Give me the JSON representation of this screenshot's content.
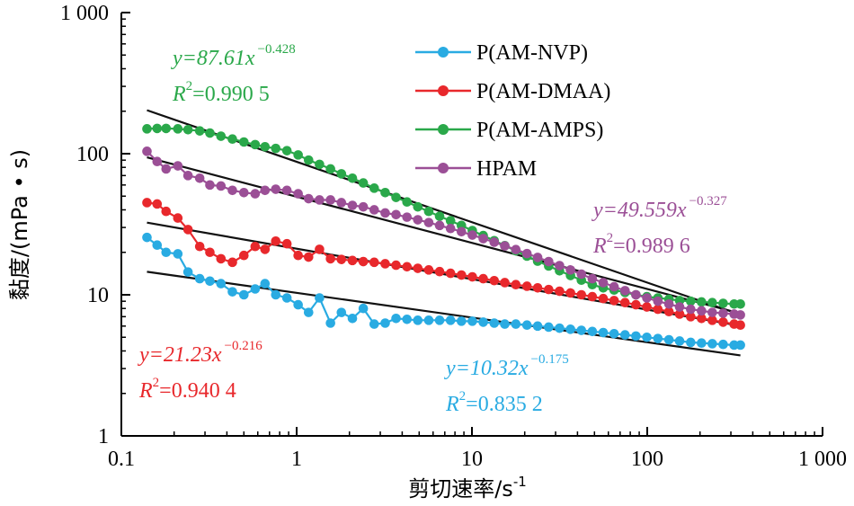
{
  "chart_data": {
    "type": "scatter",
    "xscale": "log",
    "yscale": "log",
    "xlim": [
      0.1,
      1000
    ],
    "ylim": [
      1,
      1000
    ],
    "xlabel": "剪切速率/s",
    "xlabel_sup": "-1",
    "ylabel": "黏度/(mPa • s)",
    "x_ticks": [
      "0.1",
      "1",
      "10",
      "100",
      "1 000"
    ],
    "y_ticks": [
      "1",
      "10",
      "100",
      "1 000"
    ],
    "grid": false,
    "legend_position": "top-center",
    "series": [
      {
        "key": "nvp",
        "name": "P(AM-NVP)",
        "color": "#29abe2",
        "x": [
          0.14,
          0.16,
          0.18,
          0.21,
          0.24,
          0.28,
          0.32,
          0.37,
          0.43,
          0.5,
          0.58,
          0.66,
          0.76,
          0.88,
          1.02,
          1.17,
          1.35,
          1.56,
          1.8,
          2.08,
          2.4,
          2.77,
          3.2,
          3.69,
          4.26,
          4.91,
          5.67,
          6.54,
          7.55,
          8.71,
          10.05,
          11.6,
          13.4,
          15.4,
          17.8,
          20.6,
          23.7,
          27.4,
          31.6,
          36.5,
          42.1,
          48.6,
          56.1,
          64.7,
          74.7,
          86.2,
          99.5,
          115,
          133,
          153,
          177,
          204,
          235,
          271,
          313,
          340
        ],
        "y": [
          25.5,
          22.5,
          20,
          19.5,
          14.5,
          13,
          12.5,
          12,
          10.5,
          10,
          11,
          12,
          10,
          9.5,
          8.5,
          7.5,
          9.5,
          6.3,
          7.5,
          6.8,
          8,
          6.2,
          6.3,
          6.8,
          6.7,
          6.6,
          6.6,
          6.6,
          6.6,
          6.5,
          6.5,
          6.4,
          6.3,
          6.2,
          6.2,
          6.1,
          6,
          5.9,
          5.8,
          5.7,
          5.6,
          5.5,
          5.4,
          5.3,
          5.2,
          5.1,
          5,
          4.9,
          4.8,
          4.7,
          4.6,
          4.55,
          4.5,
          4.45,
          4.4,
          4.4
        ]
      },
      {
        "key": "dmaa",
        "name": "P(AM-DMAA)",
        "color": "#e8282c",
        "x": [
          0.14,
          0.16,
          0.18,
          0.21,
          0.24,
          0.28,
          0.32,
          0.37,
          0.43,
          0.5,
          0.58,
          0.66,
          0.76,
          0.88,
          1.02,
          1.17,
          1.35,
          1.56,
          1.8,
          2.08,
          2.4,
          2.77,
          3.2,
          3.69,
          4.26,
          4.91,
          5.67,
          6.54,
          7.55,
          8.71,
          10.05,
          11.6,
          13.4,
          15.4,
          17.8,
          20.6,
          23.7,
          27.4,
          31.6,
          36.5,
          42.1,
          48.6,
          56.1,
          64.7,
          74.7,
          86.2,
          99.5,
          115,
          133,
          153,
          177,
          204,
          235,
          271,
          313,
          340
        ],
        "y": [
          45,
          44,
          39,
          35,
          29,
          22,
          20,
          18,
          17,
          19,
          22,
          21,
          24,
          23,
          19,
          18.5,
          21,
          18,
          17.8,
          17.5,
          17.2,
          17,
          16.6,
          16.2,
          15.8,
          15.4,
          15,
          14.6,
          14.2,
          13.8,
          13.4,
          13,
          12.6,
          12.2,
          11.8,
          11.5,
          11.2,
          10.9,
          10.6,
          10.3,
          10,
          9.7,
          9.4,
          9.1,
          8.8,
          8.5,
          8.2,
          7.9,
          7.6,
          7.3,
          7,
          6.8,
          6.6,
          6.4,
          6.2,
          6.1
        ]
      },
      {
        "key": "amps",
        "name": "P(AM-AMPS)",
        "color": "#2aa84a",
        "x": [
          0.14,
          0.16,
          0.18,
          0.21,
          0.24,
          0.28,
          0.32,
          0.37,
          0.43,
          0.5,
          0.58,
          0.66,
          0.76,
          0.88,
          1.02,
          1.17,
          1.35,
          1.56,
          1.8,
          2.08,
          2.4,
          2.77,
          3.2,
          3.69,
          4.26,
          4.91,
          5.67,
          6.54,
          7.55,
          8.71,
          10.05,
          11.6,
          13.4,
          15.4,
          17.8,
          20.6,
          23.7,
          27.4,
          31.6,
          36.5,
          42.1,
          48.6,
          56.1,
          64.7,
          74.7,
          86.2,
          99.5,
          115,
          133,
          153,
          177,
          204,
          235,
          271,
          313,
          340
        ],
        "y": [
          150,
          151,
          151,
          150,
          148,
          145,
          140,
          133,
          127,
          121,
          116,
          112,
          109,
          105,
          98,
          90,
          84,
          78,
          72,
          67,
          62,
          57,
          53,
          49,
          45.5,
          42,
          39,
          36,
          33.5,
          31,
          28.5,
          26.3,
          24.2,
          22.3,
          20.5,
          18.8,
          17.3,
          16,
          14.8,
          13.7,
          12.7,
          11.8,
          11.2,
          10.8,
          10.4,
          10,
          9.7,
          9.5,
          9.3,
          9.1,
          9,
          8.9,
          8.8,
          8.7,
          8.6,
          8.6
        ]
      },
      {
        "key": "hpam",
        "name": "HPAM",
        "color": "#9b4f96",
        "x": [
          0.14,
          0.16,
          0.18,
          0.21,
          0.24,
          0.28,
          0.32,
          0.37,
          0.43,
          0.5,
          0.58,
          0.66,
          0.76,
          0.88,
          1.02,
          1.17,
          1.35,
          1.56,
          1.8,
          2.08,
          2.4,
          2.77,
          3.2,
          3.69,
          4.26,
          4.91,
          5.67,
          6.54,
          7.55,
          8.71,
          10.05,
          11.6,
          13.4,
          15.4,
          17.8,
          20.6,
          23.7,
          27.4,
          31.6,
          36.5,
          42.1,
          48.6,
          56.1,
          64.7,
          74.7,
          86.2,
          99.5,
          115,
          133,
          153,
          177,
          204,
          235,
          271,
          313,
          340
        ],
        "y": [
          104,
          88,
          78,
          82,
          70,
          67,
          60,
          59,
          55,
          53,
          52,
          55,
          56,
          55,
          52,
          48,
          47,
          47,
          45,
          43,
          42,
          40,
          38,
          37,
          35.5,
          34,
          32.5,
          31,
          29.5,
          28,
          26.5,
          25,
          23.6,
          22.2,
          20.9,
          19.6,
          18.4,
          17.2,
          16.1,
          15,
          14,
          13,
          12.2,
          11.4,
          10.7,
          10,
          9.5,
          9,
          8.6,
          8.2,
          7.9,
          7.7,
          7.5,
          7.4,
          7.3,
          7.2
        ]
      }
    ],
    "fits": [
      {
        "key": "nvp",
        "a": 10.32,
        "b": -0.175,
        "x_range": [
          0.14,
          340
        ],
        "eq_coef": "y=10.32x",
        "eq_exp": "−0.175",
        "r2_value": "=0.835 2",
        "color": "#29abe2"
      },
      {
        "key": "dmaa",
        "a": 21.23,
        "b": -0.216,
        "x_range": [
          0.14,
          340
        ],
        "eq_coef": "y=21.23x",
        "eq_exp": "−0.216",
        "r2_value": "=0.940 4",
        "color": "#e8282c"
      },
      {
        "key": "amps",
        "a": 87.61,
        "b": -0.428,
        "x_range": [
          0.14,
          340
        ],
        "eq_coef": "y=87.61x",
        "eq_exp": "−0.428",
        "r2_value": "=0.990 5",
        "color": "#2aa84a"
      },
      {
        "key": "hpam",
        "a": 49.559,
        "b": -0.327,
        "x_range": [
          0.14,
          340
        ],
        "eq_coef": "y=49.559x",
        "eq_exp": "−0.327",
        "r2_value": "=0.989 6",
        "color": "#9b4f96"
      }
    ]
  }
}
